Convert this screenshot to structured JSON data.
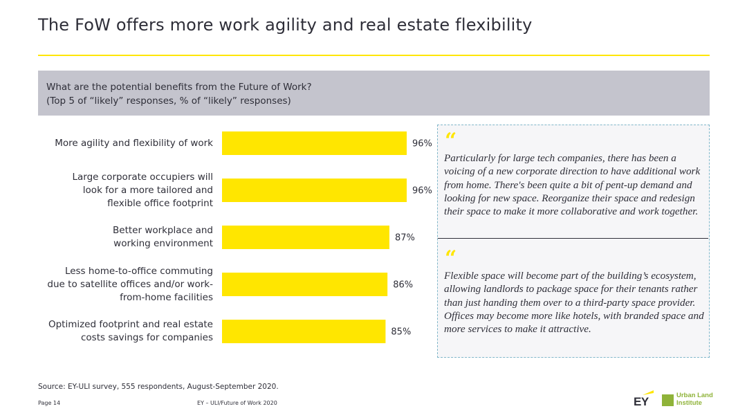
{
  "title": "The FoW offers more work agility and real estate flexibility",
  "question": {
    "line1": "What are the potential benefits from the Future of Work?",
    "line2": "(Top 5 of “likely” responses, % of “likely” responses)"
  },
  "chart_data": {
    "type": "bar",
    "orientation": "horizontal",
    "categories": [
      "More agility and flexibility of work",
      "Large corporate occupiers will look for a more tailored and flexible office footprint",
      "Better workplace and working environment",
      "Less home-to-office commuting due to satellite offices and/or work-from-home facilities",
      "Optimized footprint and real estate costs savings for companies"
    ],
    "category_lines": [
      [
        "More agility and flexibility of work"
      ],
      [
        "Large corporate occupiers will",
        "look for a more tailored and",
        "flexible office footprint"
      ],
      [
        "Better workplace and",
        "working environment"
      ],
      [
        "Less home-to-office commuting",
        "due to satellite offices and/or work-",
        "from-home facilities"
      ],
      [
        "Optimized footprint and real estate",
        "costs savings for companies"
      ]
    ],
    "values": [
      96,
      96,
      87,
      86,
      85
    ],
    "value_labels": [
      "96%",
      "96%",
      "87%",
      "86%",
      "85%"
    ],
    "bar_color": "#ffe600",
    "grid": false,
    "legend": "none"
  },
  "quotes": [
    {
      "mark": "“",
      "text": "Particularly for large tech companies, there has been a voicing of a new corporate direction to have additional work from home. There's been quite a bit of pent-up demand and looking for new space. Reorganize their space and redesign their space to make it more collaborative and work together."
    },
    {
      "mark": "“",
      "text": "Flexible space will become part of the building’s ecosystem, allowing landlords to package space for their tenants rather than just handing them over to a third-party space provider. Offices may become more like hotels, with branded space and more services to make it attractive."
    }
  ],
  "footer": {
    "source": "Source: EY-ULI survey, 555 respondents, August-September 2020.",
    "page": "Page 14",
    "doc": "EY – ULI/Future of Work 2020"
  },
  "logos": {
    "ey": "EY",
    "uli": "Urban Land Institute"
  },
  "colors": {
    "accent": "#ffe600",
    "text": "#2e2e38",
    "question_bg": "#c4c4cd",
    "quote_border": "#7fb6c9",
    "uli_green": "#8fb339"
  }
}
